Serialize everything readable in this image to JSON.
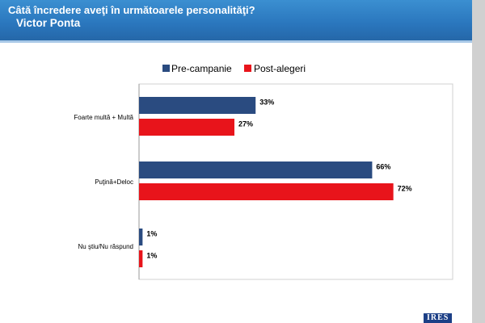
{
  "header": {
    "title": "Câtă încredere aveţi în următoarele personalităţi?",
    "subtitle": "Victor Ponta"
  },
  "logo": {
    "text": "IRES"
  },
  "colors": {
    "header": "#2a76bd",
    "pre": "#2a4b80",
    "post": "#e8141b"
  },
  "chart_data": {
    "type": "bar",
    "orientation": "horizontal",
    "categories": [
      "Foarte multă + Multă",
      "Puţină+Deloc",
      "Nu ştiu/Nu răspund"
    ],
    "series": [
      {
        "name": "Pre-campanie",
        "color": "#2a4b80",
        "values": [
          33,
          66,
          1
        ],
        "labels": [
          "33%",
          "66%",
          "1%"
        ]
      },
      {
        "name": "Post-alegeri",
        "color": "#e8141b",
        "values": [
          27,
          72,
          1
        ],
        "labels": [
          "27%",
          "72%",
          "1%"
        ]
      }
    ],
    "xlim": [
      0,
      100
    ],
    "legend": "top",
    "grid": false
  }
}
